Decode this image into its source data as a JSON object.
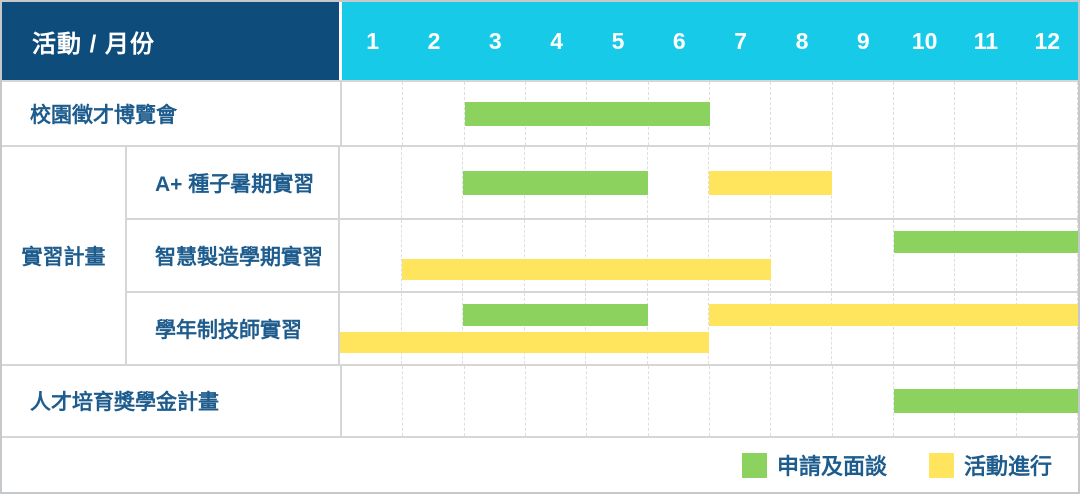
{
  "header": {
    "corner_label": "活動 / 月份",
    "months": [
      "1",
      "2",
      "3",
      "4",
      "5",
      "6",
      "7",
      "8",
      "9",
      "10",
      "11",
      "12"
    ]
  },
  "legend": {
    "items": [
      {
        "label": "申請及面談",
        "color_key": "green"
      },
      {
        "label": "活動進行",
        "color_key": "yellow"
      }
    ]
  },
  "colors": {
    "green": "#8bd35e",
    "yellow": "#ffe45e",
    "navy": "#0e4c7c",
    "cyan": "#17cae8",
    "label_text": "#1d5c8d",
    "grid_line": "#d6d6d6"
  },
  "chart_data": {
    "type": "bar",
    "subtype": "gantt-timeline",
    "title": "活動 / 月份",
    "xlabel": "月份",
    "x_ticks": [
      "1",
      "2",
      "3",
      "4",
      "5",
      "6",
      "7",
      "8",
      "9",
      "10",
      "11",
      "12"
    ],
    "x_range": [
      1,
      12
    ],
    "grid": "dashed-vertical-month-lines",
    "legend_position": "bottom-right",
    "phases": {
      "green": "申請及面談",
      "yellow": "活動進行"
    },
    "tasks": [
      {
        "name": "校園徵才博覽會",
        "group": "",
        "lanes": 1,
        "bars": [
          {
            "phase": "申請及面談",
            "color": "green",
            "start_month": 3,
            "end_month": 6,
            "lane": 0
          }
        ]
      },
      {
        "name": "A+ 種子暑期實習",
        "group": "實習計畫",
        "lanes": 1,
        "bars": [
          {
            "phase": "申請及面談",
            "color": "green",
            "start_month": 3,
            "end_month": 5,
            "lane": 0
          },
          {
            "phase": "活動進行",
            "color": "yellow",
            "start_month": 7,
            "end_month": 8,
            "lane": 0
          }
        ]
      },
      {
        "name": "智慧製造學期實習",
        "group": "實習計畫",
        "lanes": 2,
        "bars": [
          {
            "phase": "申請及面談",
            "color": "green",
            "start_month": 10,
            "end_month": 12,
            "lane": 0
          },
          {
            "phase": "活動進行",
            "color": "yellow",
            "start_month": 2,
            "end_month": 7,
            "lane": 1
          }
        ]
      },
      {
        "name": "學年制技師實習",
        "group": "實習計畫",
        "lanes": 2,
        "bars": [
          {
            "phase": "申請及面談",
            "color": "green",
            "start_month": 3,
            "end_month": 5,
            "lane": 0
          },
          {
            "phase": "活動進行",
            "color": "yellow",
            "start_month": 7,
            "end_month": 12,
            "lane": 0
          },
          {
            "phase": "活動進行",
            "color": "yellow",
            "start_month": 1,
            "end_month": 6,
            "lane": 1
          }
        ]
      },
      {
        "name": "人才培育獎學金計畫",
        "group": "",
        "lanes": 1,
        "bars": [
          {
            "phase": "申請及面談",
            "color": "green",
            "start_month": 10,
            "end_month": 12,
            "lane": 0
          }
        ]
      }
    ]
  }
}
